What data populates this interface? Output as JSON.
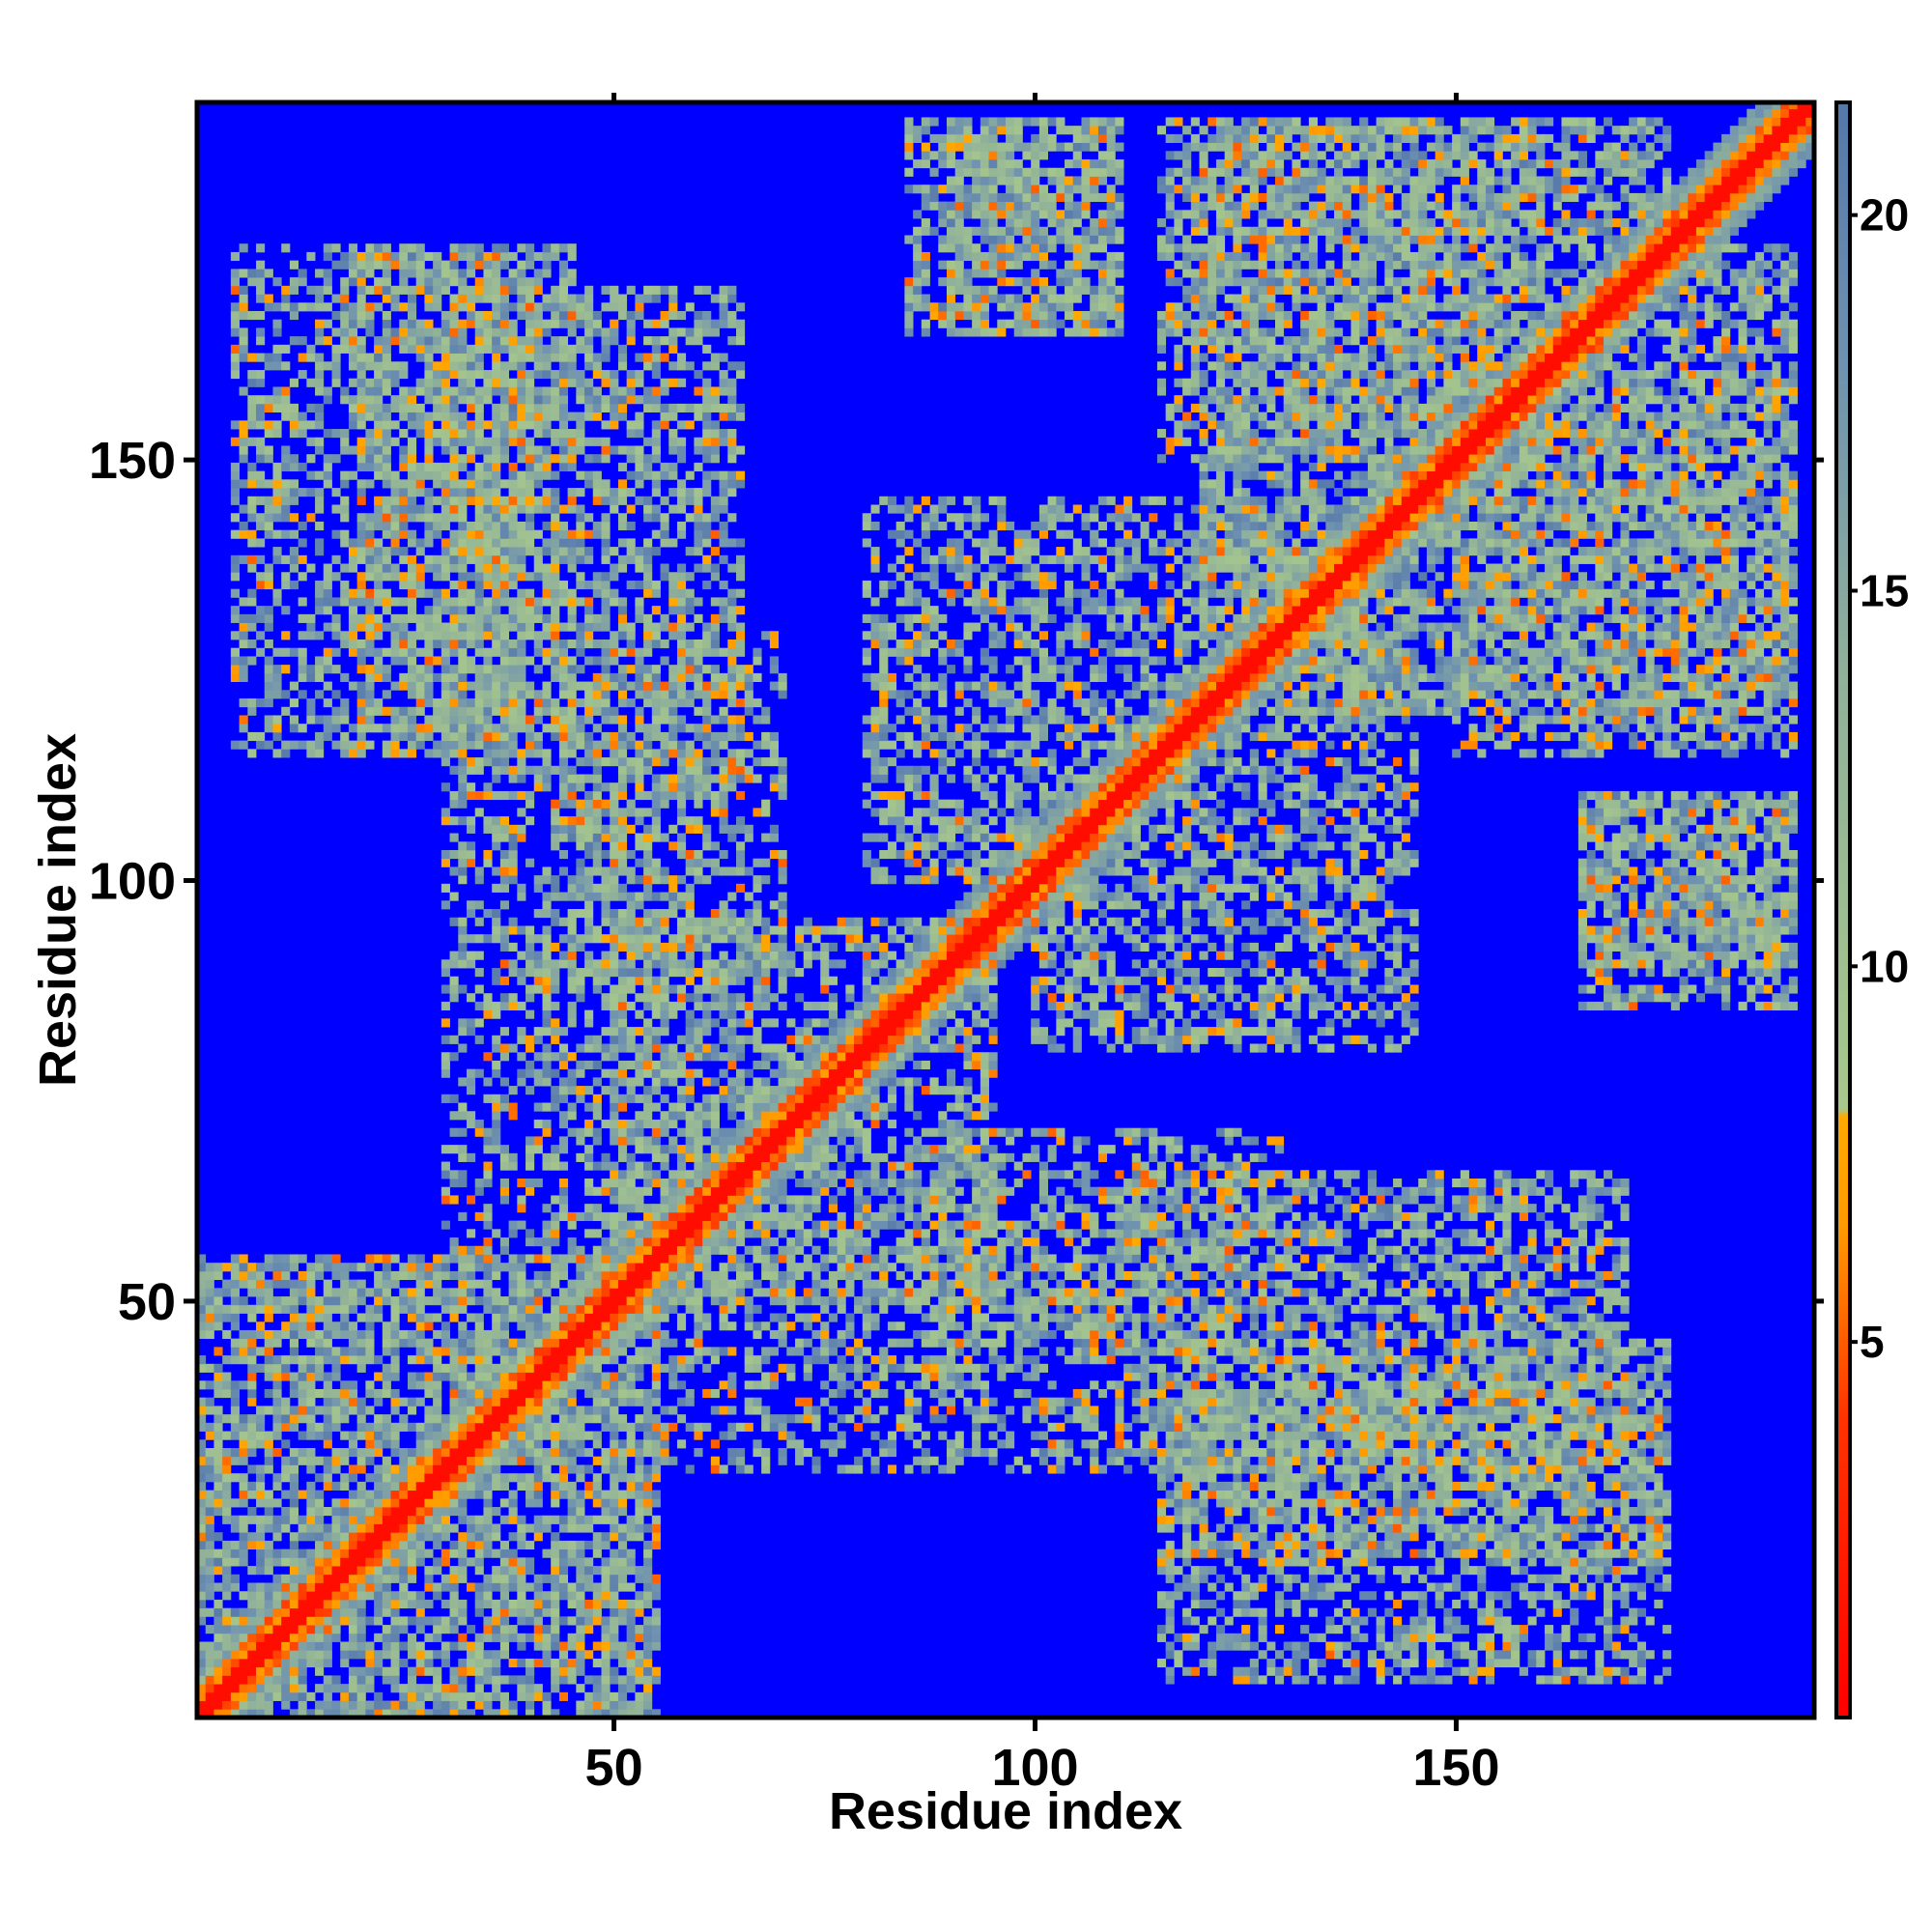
{
  "chart_data": {
    "type": "heatmap",
    "title": "",
    "xlabel": "Residue index",
    "ylabel": "Residue index",
    "xlim": [
      1,
      192
    ],
    "ylim": [
      1,
      192
    ],
    "n_residues": 192,
    "x_ticks": [
      50,
      100,
      150
    ],
    "y_ticks": [
      50,
      100,
      150
    ],
    "colorbar": {
      "ticks": [
        5,
        10,
        15,
        20
      ],
      "range": [
        0,
        21.5
      ],
      "stops": [
        {
          "value": 0,
          "color": "#ff0000"
        },
        {
          "value": 4,
          "color": "#ff3300"
        },
        {
          "value": 6.5,
          "color": "#ff9900"
        },
        {
          "value": 8,
          "color": "#ffaa00"
        },
        {
          "value": 8.1,
          "color": "#a8c88c"
        },
        {
          "value": 14,
          "color": "#8fb09a"
        },
        {
          "value": 18,
          "color": "#6f92b0"
        },
        {
          "value": 21.5,
          "color": "#5577aa"
        }
      ],
      "cap_color": "#0000ff"
    },
    "diagonal_band": {
      "width": 1.5,
      "color": "#ff0000"
    },
    "contact_regions": [
      {
        "x": [
          1,
          55
        ],
        "y": [
          1,
          55
        ],
        "density": 0.75
      },
      {
        "x": [
          30,
          65
        ],
        "y": [
          110,
          170
        ],
        "density": 0.55
      },
      {
        "x": [
          5,
          40
        ],
        "y": [
          115,
          175
        ],
        "density": 0.5
      },
      {
        "x": [
          90,
          110
        ],
        "y": [
          165,
          190
        ],
        "density": 0.55
      },
      {
        "x": [
          120,
          175
        ],
        "y": [
          130,
          190
        ],
        "density": 0.6
      },
      {
        "x": [
          100,
          145
        ],
        "y": [
          80,
          135
        ],
        "density": 0.55
      },
      {
        "x": [
          115,
          175
        ],
        "y": [
          20,
          45
        ],
        "density": 0.45
      },
      {
        "x": [
          165,
          190
        ],
        "y": [
          85,
          110
        ],
        "density": 0.55
      },
      {
        "x": [
          60,
          95
        ],
        "y": [
          50,
          95
        ],
        "density": 0.55
      },
      {
        "x": [
          85,
          130
        ],
        "y": [
          45,
          70
        ],
        "density": 0.45
      },
      {
        "x": [
          30,
          60
        ],
        "y": [
          55,
          110
        ],
        "density": 0.45
      },
      {
        "x": [
          150,
          190
        ],
        "y": [
          115,
          160
        ],
        "density": 0.5
      }
    ]
  }
}
